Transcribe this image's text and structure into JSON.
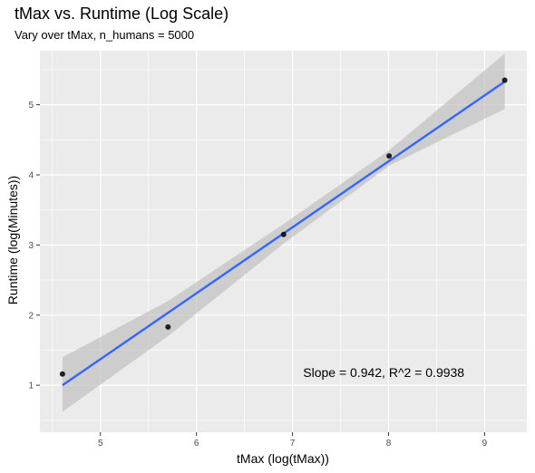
{
  "chart_data": {
    "type": "scatter",
    "title": "tMax vs. Runtime (Log Scale)",
    "subtitle": "Vary over tMax, n_humans = 5000",
    "xlabel": "tMax (log(tMax))",
    "ylabel": "Runtime (log(Minutes))",
    "xlim": [
      4.37,
      9.44
    ],
    "ylim": [
      0.33,
      5.77
    ],
    "x_ticks": [
      5,
      6,
      7,
      8,
      9
    ],
    "y_ticks": [
      1,
      2,
      3,
      4,
      5
    ],
    "grid": true,
    "points": [
      {
        "x": 4.605,
        "y": 1.16
      },
      {
        "x": 5.704,
        "y": 1.83
      },
      {
        "x": 6.908,
        "y": 3.15
      },
      {
        "x": 8.006,
        "y": 4.27
      },
      {
        "x": 9.21,
        "y": 5.35
      }
    ],
    "fit_line": {
      "x": [
        4.605,
        9.21
      ],
      "y": [
        1.0,
        5.33
      ]
    },
    "confidence_band": {
      "x": [
        4.605,
        5.704,
        6.908,
        8.006,
        9.21
      ],
      "upper": [
        1.4,
        2.2,
        3.3,
        4.35,
        5.73
      ],
      "lower": [
        0.62,
        1.7,
        3.02,
        4.13,
        4.94
      ]
    },
    "annotation": {
      "text": "Slope = 0.942, R^2 = 0.9938",
      "x": 7.95,
      "y": 1.12
    },
    "colors": {
      "panel": "#ebebeb",
      "grid": "#ffffff",
      "point": "#000000",
      "line": "#3366ff",
      "band": "#bdbdbd"
    }
  }
}
